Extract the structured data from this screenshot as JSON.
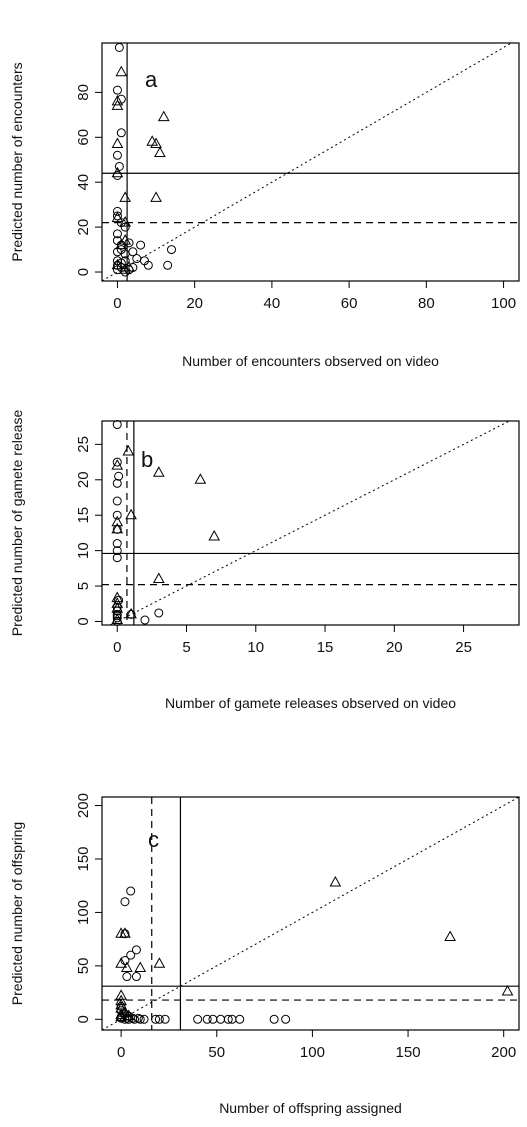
{
  "chart_data": [
    {
      "type": "scatter",
      "panel_label": "a",
      "xlabel": "Number of encounters observed on video",
      "ylabel": "Predicted number of encounters",
      "xlim": [
        -4,
        104
      ],
      "ylim": [
        -4,
        102
      ],
      "x_ticks": [
        0,
        20,
        40,
        60,
        80,
        100
      ],
      "y_ticks": [
        0,
        20,
        40,
        60,
        80
      ],
      "reference_lines": {
        "one_to_one": "dotted",
        "vertical_solid_x": 2.5,
        "horizontal_solid_y": 44,
        "horizontal_dashed_y": 22
      },
      "series": [
        {
          "marker": "circle",
          "points": [
            [
              0.5,
              100
            ],
            [
              0,
              81
            ],
            [
              1,
              77
            ],
            [
              1,
              62
            ],
            [
              0,
              52
            ],
            [
              0.5,
              47
            ],
            [
              0,
              43
            ],
            [
              0,
              27
            ],
            [
              0,
              25
            ],
            [
              1,
              22
            ],
            [
              2,
              20
            ],
            [
              0,
              17
            ],
            [
              0,
              14
            ],
            [
              1,
              12
            ],
            [
              0,
              9
            ],
            [
              2,
              8
            ],
            [
              0,
              5
            ],
            [
              1,
              4
            ],
            [
              0,
              3
            ],
            [
              1,
              2
            ],
            [
              0,
              1
            ],
            [
              2,
              0
            ],
            [
              1,
              10
            ],
            [
              3,
              13
            ],
            [
              4,
              9
            ],
            [
              5,
              6
            ],
            [
              6,
              12
            ],
            [
              8,
              3
            ],
            [
              4,
              2
            ],
            [
              3,
              1
            ],
            [
              2,
              5
            ],
            [
              14,
              10
            ],
            [
              13,
              3
            ],
            [
              7,
              5
            ]
          ]
        },
        {
          "marker": "triangle",
          "points": [
            [
              1,
              89
            ],
            [
              0,
              76
            ],
            [
              0,
              74
            ],
            [
              0,
              57
            ],
            [
              0,
              44
            ],
            [
              2,
              33
            ],
            [
              0,
              24
            ],
            [
              2,
              22
            ],
            [
              2,
              14
            ],
            [
              1,
              12
            ],
            [
              0,
              3
            ],
            [
              3,
              2
            ],
            [
              2,
              1
            ],
            [
              9,
              58
            ],
            [
              10,
              57
            ],
            [
              12,
              69
            ],
            [
              11,
              53
            ],
            [
              10,
              33
            ]
          ]
        }
      ]
    },
    {
      "type": "scatter",
      "panel_label": "b",
      "xlabel": "Number of gamete releases observed on video",
      "ylabel": "Predicted number of gamete release",
      "xlim": [
        -1.1,
        29
      ],
      "ylim": [
        -0.5,
        28.3
      ],
      "x_ticks": [
        0,
        5,
        10,
        15,
        20,
        25
      ],
      "y_ticks": [
        0,
        5,
        10,
        15,
        20,
        25
      ],
      "reference_lines": {
        "one_to_one": "dotted",
        "vertical_solid_x": 1.2,
        "vertical_dashed_x": 0.7,
        "horizontal_solid_y": 9.6,
        "horizontal_dashed_y": 5.2
      },
      "series": [
        {
          "marker": "circle",
          "points": [
            [
              0,
              27.8
            ],
            [
              0,
              22.5
            ],
            [
              0.1,
              20.5
            ],
            [
              0,
              19.5
            ],
            [
              0,
              17
            ],
            [
              0,
              15
            ],
            [
              0,
              13
            ],
            [
              0,
              11
            ],
            [
              0,
              10
            ],
            [
              0,
              9
            ],
            [
              0.1,
              3
            ],
            [
              0,
              2
            ],
            [
              0,
              1.5
            ],
            [
              0,
              1
            ],
            [
              0,
              0.5
            ],
            [
              0,
              0
            ],
            [
              1,
              1
            ],
            [
              2,
              0.2
            ],
            [
              3,
              1.2
            ],
            [
              0,
              0.8
            ]
          ]
        },
        {
          "marker": "triangle",
          "points": [
            [
              0,
              22
            ],
            [
              0,
              14
            ],
            [
              0,
              13
            ],
            [
              0,
              3.3
            ],
            [
              0,
              2.5
            ],
            [
              0,
              1.8
            ],
            [
              0.8,
              24
            ],
            [
              1,
              15
            ],
            [
              3,
              21
            ],
            [
              6,
              20
            ],
            [
              7,
              12
            ],
            [
              3,
              6
            ],
            [
              1,
              1
            ],
            [
              0,
              0.2
            ]
          ]
        }
      ]
    },
    {
      "type": "scatter",
      "panel_label": "c",
      "xlabel": "Number of offspring assigned",
      "ylabel": "Predicted number of offspring",
      "xlim": [
        -10,
        208
      ],
      "ylim": [
        -10,
        208
      ],
      "x_ticks": [
        0,
        50,
        100,
        150,
        200
      ],
      "y_ticks": [
        0,
        50,
        100,
        150,
        200
      ],
      "reference_lines": {
        "one_to_one": "dotted",
        "vertical_solid_x": 31,
        "vertical_dashed_x": 16,
        "horizontal_solid_y": 31,
        "horizontal_dashed_y": 18
      },
      "series": [
        {
          "marker": "circle",
          "points": [
            [
              5,
              120
            ],
            [
              2,
              110
            ],
            [
              2,
              80
            ],
            [
              5,
              60
            ],
            [
              8,
              65
            ],
            [
              2,
              55
            ],
            [
              8,
              40
            ],
            [
              3,
              40
            ],
            [
              0,
              12
            ],
            [
              0,
              8
            ],
            [
              2,
              5
            ],
            [
              4,
              3
            ],
            [
              0,
              2
            ],
            [
              2,
              0
            ],
            [
              4,
              0
            ],
            [
              7,
              0
            ],
            [
              10,
              0
            ],
            [
              12,
              0
            ],
            [
              18,
              0
            ],
            [
              20,
              0
            ],
            [
              23,
              0
            ],
            [
              40,
              0
            ],
            [
              45,
              0
            ],
            [
              48,
              0
            ],
            [
              52,
              0
            ],
            [
              56,
              0
            ],
            [
              58,
              0
            ],
            [
              62,
              0
            ],
            [
              80,
              0
            ],
            [
              86,
              0
            ],
            [
              0,
              1
            ],
            [
              3,
              1
            ],
            [
              6,
              1
            ],
            [
              9,
              1
            ]
          ]
        },
        {
          "marker": "triangle",
          "points": [
            [
              0,
              80
            ],
            [
              2,
              80
            ],
            [
              0,
              52
            ],
            [
              3,
              48
            ],
            [
              10,
              48
            ],
            [
              20,
              52
            ],
            [
              0,
              22
            ],
            [
              0,
              17
            ],
            [
              0,
              13
            ],
            [
              0,
              10
            ],
            [
              2,
              6
            ],
            [
              0,
              4
            ],
            [
              4,
              3
            ],
            [
              0,
              2
            ],
            [
              112,
              128
            ],
            [
              172,
              77
            ],
            [
              202,
              26
            ]
          ]
        }
      ]
    }
  ]
}
